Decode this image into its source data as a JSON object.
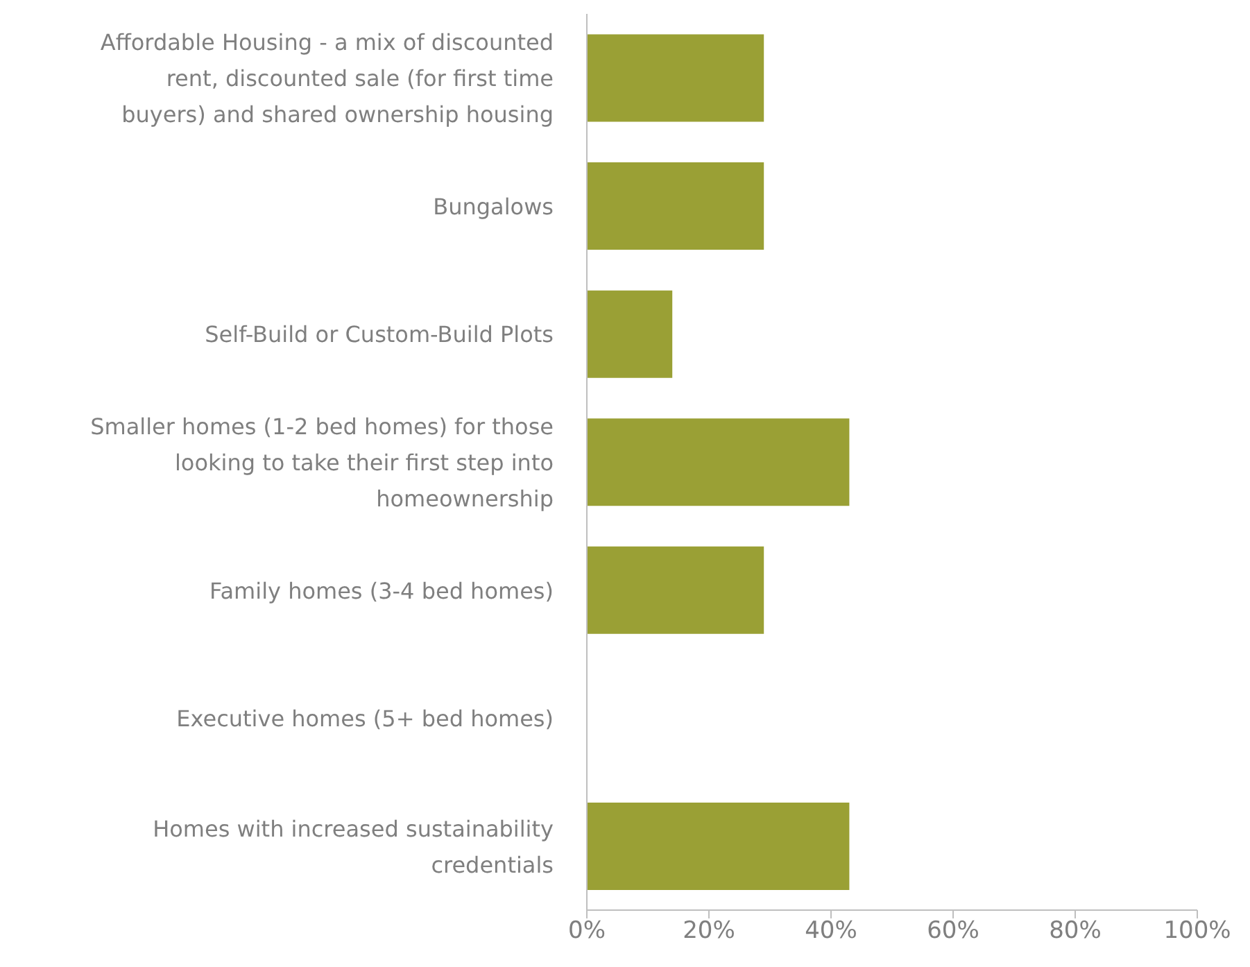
{
  "chart_data": {
    "type": "bar",
    "orientation": "horizontal",
    "categories": [
      "Affordable Housing - a mix of discounted rent, discounted sale (for first time buyers) and shared ownership housing",
      "Bungalows",
      "Self-Build or Custom-Build Plots",
      "Smaller homes (1-2 bed homes) for those looking to take their first step into homeownership",
      "Family homes (3-4 bed homes)",
      "Executive homes (5+ bed homes)",
      "Homes with increased sustainability credentials"
    ],
    "values": [
      29,
      29,
      14,
      43,
      29,
      0,
      43
    ],
    "color": "#9aa035",
    "xlim": [
      0,
      100
    ],
    "xticks": [
      {
        "value": 0,
        "label": "0%"
      },
      {
        "value": 20,
        "label": "20%"
      },
      {
        "value": 40,
        "label": "40%"
      },
      {
        "value": 60,
        "label": "60%"
      },
      {
        "value": 80,
        "label": "80%"
      },
      {
        "value": 100,
        "label": "100%"
      }
    ],
    "grid": false,
    "legend": false
  }
}
